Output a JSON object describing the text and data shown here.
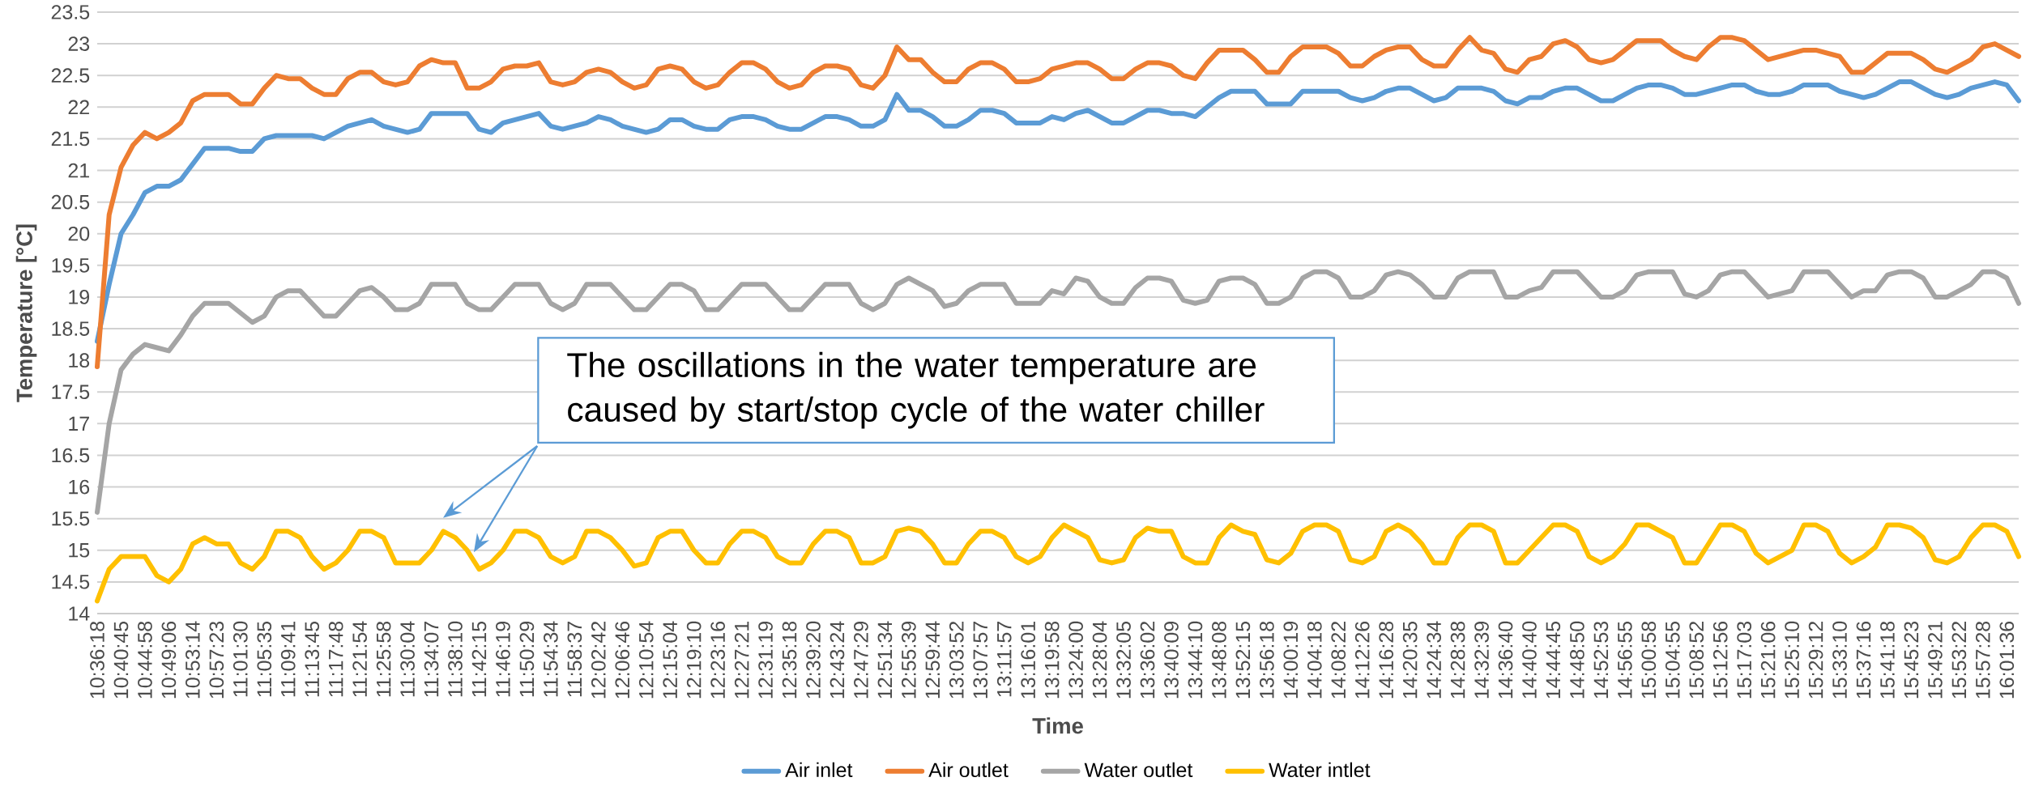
{
  "chart_data": {
    "type": "line",
    "xlabel": "Time",
    "ylabel": "Temperature [°C]",
    "annotations": [
      "The oscillations in the water temperature are caused by start/stop cycle of the water chiller"
    ],
    "categories": [
      "10:36:18",
      null,
      "10:40:45",
      null,
      "10:44:58",
      null,
      "10:49:06",
      null,
      "10:53:14",
      null,
      "10:57:23",
      null,
      "11:01:30",
      null,
      "11:05:35",
      null,
      "11:09:41",
      null,
      "11:13:45",
      null,
      "11:17:48",
      null,
      "11:21:54",
      null,
      "11:25:58",
      null,
      "11:30:04",
      null,
      "11:34:07",
      null,
      "11:38:10",
      null,
      "11:42:15",
      null,
      "11:46:19",
      null,
      "11:50:29",
      null,
      "11:54:34",
      null,
      "11:58:37",
      null,
      "12:02:42",
      null,
      "12:06:46",
      null,
      "12:10:54",
      null,
      "12:15:04",
      null,
      "12:19:10",
      null,
      "12:23:16",
      null,
      "12:27:21",
      null,
      "12:31:19",
      null,
      "12:35:18",
      null,
      "12:39:20",
      null,
      "12:43:24",
      null,
      "12:47:29",
      null,
      "12:51:34",
      null,
      "12:55:39",
      null,
      "12:59:44",
      null,
      "13:03:52",
      null,
      "13:07:57",
      null,
      "13:11:57",
      null,
      "13:16:01",
      null,
      "13:19:58",
      null,
      "13:24:00",
      null,
      "13:28:04",
      null,
      "13:32:05",
      null,
      "13:36:02",
      null,
      "13:40:09",
      null,
      "13:44:10",
      null,
      "13:48:08",
      null,
      "13:52:15",
      null,
      "13:56:18",
      null,
      "14:00:19",
      null,
      "14:04:18",
      null,
      "14:08:22",
      null,
      "14:12:26",
      null,
      "14:16:28",
      null,
      "14:20:35",
      null,
      "14:24:34",
      null,
      "14:28:38",
      null,
      "14:32:39",
      null,
      "14:36:40",
      null,
      "14:40:40",
      null,
      "14:44:45",
      null,
      "14:48:50",
      null,
      "14:52:53",
      null,
      "14:56:55",
      null,
      "15:00:58",
      null,
      "15:04:55",
      null,
      "15:08:52",
      null,
      "15:12:56",
      null,
      "15:17:03",
      null,
      "15:21:06",
      null,
      "15:25:10",
      null,
      "15:29:12",
      null,
      "15:33:10",
      null,
      "15:37:16",
      null,
      "15:41:18",
      null,
      "15:45:23",
      null,
      "15:49:21",
      null,
      "15:53:22",
      null,
      "15:57:28",
      null,
      "16:01:36",
      null
    ],
    "series": [
      {
        "name": "Air inlet",
        "color": "#5b9bd5",
        "values": [
          18.3,
          19.2,
          20.0,
          20.3,
          20.65,
          20.75,
          20.75,
          20.85,
          21.1,
          21.35,
          21.35,
          21.35,
          21.3,
          21.3,
          21.5,
          21.55,
          21.55,
          21.55,
          21.55,
          21.5,
          21.6,
          21.7,
          21.75,
          21.8,
          21.7,
          21.65,
          21.6,
          21.65,
          21.9,
          21.9,
          21.9,
          21.9,
          21.65,
          21.6,
          21.75,
          21.8,
          21.85,
          21.9,
          21.7,
          21.65,
          21.7,
          21.75,
          21.85,
          21.8,
          21.7,
          21.65,
          21.6,
          21.65,
          21.8,
          21.8,
          21.7,
          21.65,
          21.65,
          21.8,
          21.85,
          21.85,
          21.8,
          21.7,
          21.65,
          21.65,
          21.75,
          21.85,
          21.85,
          21.8,
          21.7,
          21.7,
          21.8,
          22.2,
          21.95,
          21.95,
          21.85,
          21.7,
          21.7,
          21.8,
          21.95,
          21.95,
          21.9,
          21.75,
          21.75,
          21.75,
          21.85,
          21.8,
          21.9,
          21.95,
          21.85,
          21.75,
          21.75,
          21.85,
          21.95,
          21.95,
          21.9,
          21.9,
          21.85,
          22.0,
          22.15,
          22.25,
          22.25,
          22.25,
          22.05,
          22.05,
          22.05,
          22.25,
          22.25,
          22.25,
          22.25,
          22.15,
          22.1,
          22.15,
          22.25,
          22.3,
          22.3,
          22.2,
          22.1,
          22.15,
          22.3,
          22.3,
          22.3,
          22.25,
          22.1,
          22.05,
          22.15,
          22.15,
          22.25,
          22.3,
          22.3,
          22.2,
          22.1,
          22.1,
          22.2,
          22.3,
          22.35,
          22.35,
          22.3,
          22.2,
          22.2,
          22.25,
          22.3,
          22.35,
          22.35,
          22.25,
          22.2,
          22.2,
          22.25,
          22.35,
          22.35,
          22.35,
          22.25,
          22.2,
          22.15,
          22.2,
          22.3,
          22.4,
          22.4,
          22.3,
          22.2,
          22.15,
          22.2,
          22.3,
          22.35,
          22.4,
          22.35,
          22.1
        ]
      },
      {
        "name": "Air outlet",
        "color": "#ed7d31",
        "values": [
          17.9,
          20.3,
          21.05,
          21.4,
          21.6,
          21.5,
          21.6,
          21.75,
          22.1,
          22.2,
          22.2,
          22.2,
          22.05,
          22.05,
          22.3,
          22.5,
          22.45,
          22.45,
          22.3,
          22.2,
          22.2,
          22.45,
          22.55,
          22.55,
          22.4,
          22.35,
          22.4,
          22.65,
          22.75,
          22.7,
          22.7,
          22.3,
          22.3,
          22.4,
          22.6,
          22.65,
          22.65,
          22.7,
          22.4,
          22.35,
          22.4,
          22.55,
          22.6,
          22.55,
          22.4,
          22.3,
          22.35,
          22.6,
          22.65,
          22.6,
          22.4,
          22.3,
          22.35,
          22.55,
          22.7,
          22.7,
          22.6,
          22.4,
          22.3,
          22.35,
          22.55,
          22.65,
          22.65,
          22.6,
          22.35,
          22.3,
          22.5,
          22.95,
          22.75,
          22.75,
          22.55,
          22.4,
          22.4,
          22.6,
          22.7,
          22.7,
          22.6,
          22.4,
          22.4,
          22.45,
          22.6,
          22.65,
          22.7,
          22.7,
          22.6,
          22.45,
          22.45,
          22.6,
          22.7,
          22.7,
          22.65,
          22.5,
          22.45,
          22.7,
          22.9,
          22.9,
          22.9,
          22.75,
          22.55,
          22.55,
          22.8,
          22.95,
          22.95,
          22.95,
          22.85,
          22.65,
          22.65,
          22.8,
          22.9,
          22.95,
          22.95,
          22.75,
          22.65,
          22.65,
          22.9,
          23.1,
          22.9,
          22.85,
          22.6,
          22.55,
          22.75,
          22.8,
          23.0,
          23.05,
          22.95,
          22.75,
          22.7,
          22.75,
          22.9,
          23.05,
          23.05,
          23.05,
          22.9,
          22.8,
          22.75,
          22.95,
          23.1,
          23.1,
          23.05,
          22.9,
          22.75,
          22.8,
          22.85,
          22.9,
          22.9,
          22.85,
          22.8,
          22.55,
          22.55,
          22.7,
          22.85,
          22.85,
          22.85,
          22.75,
          22.6,
          22.55,
          22.65,
          22.75,
          22.95,
          23.0,
          22.9,
          22.8
        ]
      },
      {
        "name": "Water outlet",
        "color": "#a5a5a5",
        "values": [
          15.6,
          17.0,
          17.85,
          18.1,
          18.25,
          18.2,
          18.15,
          18.4,
          18.7,
          18.9,
          18.9,
          18.9,
          18.75,
          18.6,
          18.7,
          19.0,
          19.1,
          19.1,
          18.9,
          18.7,
          18.7,
          18.9,
          19.1,
          19.15,
          19.0,
          18.8,
          18.8,
          18.9,
          19.2,
          19.2,
          19.2,
          18.9,
          18.8,
          18.8,
          19.0,
          19.2,
          19.2,
          19.2,
          18.9,
          18.8,
          18.9,
          19.2,
          19.2,
          19.2,
          19.0,
          18.8,
          18.8,
          19.0,
          19.2,
          19.2,
          19.1,
          18.8,
          18.8,
          19.0,
          19.2,
          19.2,
          19.2,
          19.0,
          18.8,
          18.8,
          19.0,
          19.2,
          19.2,
          19.2,
          18.9,
          18.8,
          18.9,
          19.2,
          19.3,
          19.2,
          19.1,
          18.85,
          18.9,
          19.1,
          19.2,
          19.2,
          19.2,
          18.9,
          18.9,
          18.9,
          19.1,
          19.05,
          19.3,
          19.25,
          19.0,
          18.9,
          18.9,
          19.15,
          19.3,
          19.3,
          19.25,
          18.95,
          18.9,
          18.95,
          19.25,
          19.3,
          19.3,
          19.2,
          18.9,
          18.9,
          19.0,
          19.3,
          19.4,
          19.4,
          19.3,
          19.0,
          19.0,
          19.1,
          19.35,
          19.4,
          19.35,
          19.2,
          19.0,
          19.0,
          19.3,
          19.4,
          19.4,
          19.4,
          19.0,
          19.0,
          19.1,
          19.15,
          19.4,
          19.4,
          19.4,
          19.2,
          19.0,
          19.0,
          19.1,
          19.35,
          19.4,
          19.4,
          19.4,
          19.05,
          19.0,
          19.1,
          19.35,
          19.4,
          19.4,
          19.2,
          19.0,
          19.05,
          19.1,
          19.4,
          19.4,
          19.4,
          19.2,
          19.0,
          19.1,
          19.1,
          19.35,
          19.4,
          19.4,
          19.3,
          19.0,
          19.0,
          19.1,
          19.2,
          19.4,
          19.4,
          19.3,
          18.9
        ]
      },
      {
        "name": "Water intlet",
        "color": "#ffc000",
        "values": [
          14.2,
          14.7,
          14.9,
          14.9,
          14.9,
          14.6,
          14.5,
          14.7,
          15.1,
          15.2,
          15.1,
          15.1,
          14.8,
          14.7,
          14.9,
          15.3,
          15.3,
          15.2,
          14.9,
          14.7,
          14.8,
          15.0,
          15.3,
          15.3,
          15.2,
          14.8,
          14.8,
          14.8,
          15.0,
          15.3,
          15.2,
          15.0,
          14.7,
          14.8,
          15.0,
          15.3,
          15.3,
          15.2,
          14.9,
          14.8,
          14.9,
          15.3,
          15.3,
          15.2,
          15.0,
          14.75,
          14.8,
          15.2,
          15.3,
          15.3,
          15.0,
          14.8,
          14.8,
          15.1,
          15.3,
          15.3,
          15.2,
          14.9,
          14.8,
          14.8,
          15.1,
          15.3,
          15.3,
          15.2,
          14.8,
          14.8,
          14.9,
          15.3,
          15.35,
          15.3,
          15.1,
          14.8,
          14.8,
          15.1,
          15.3,
          15.3,
          15.2,
          14.9,
          14.8,
          14.9,
          15.2,
          15.4,
          15.3,
          15.2,
          14.85,
          14.8,
          14.85,
          15.2,
          15.35,
          15.3,
          15.3,
          14.9,
          14.8,
          14.8,
          15.2,
          15.4,
          15.3,
          15.25,
          14.85,
          14.8,
          14.95,
          15.3,
          15.4,
          15.4,
          15.3,
          14.85,
          14.8,
          14.9,
          15.3,
          15.4,
          15.3,
          15.1,
          14.8,
          14.8,
          15.2,
          15.4,
          15.4,
          15.3,
          14.8,
          14.8,
          15.0,
          15.2,
          15.4,
          15.4,
          15.3,
          14.9,
          14.8,
          14.9,
          15.1,
          15.4,
          15.4,
          15.3,
          15.2,
          14.8,
          14.8,
          15.1,
          15.4,
          15.4,
          15.3,
          14.95,
          14.8,
          14.9,
          15.0,
          15.4,
          15.4,
          15.3,
          14.95,
          14.8,
          14.9,
          15.05,
          15.4,
          15.4,
          15.35,
          15.2,
          14.85,
          14.8,
          14.9,
          15.2,
          15.4,
          15.4,
          15.3,
          14.9
        ]
      }
    ],
    "ylim": [
      14,
      23.5
    ],
    "yticks": [
      14,
      14.5,
      15,
      15.5,
      16,
      16.5,
      17,
      17.5,
      18,
      18.5,
      19,
      19.5,
      20,
      20.5,
      21,
      21.5,
      22,
      22.5,
      23,
      23.5
    ],
    "grid": "y",
    "legend": "bottom",
    "marker": "none"
  }
}
